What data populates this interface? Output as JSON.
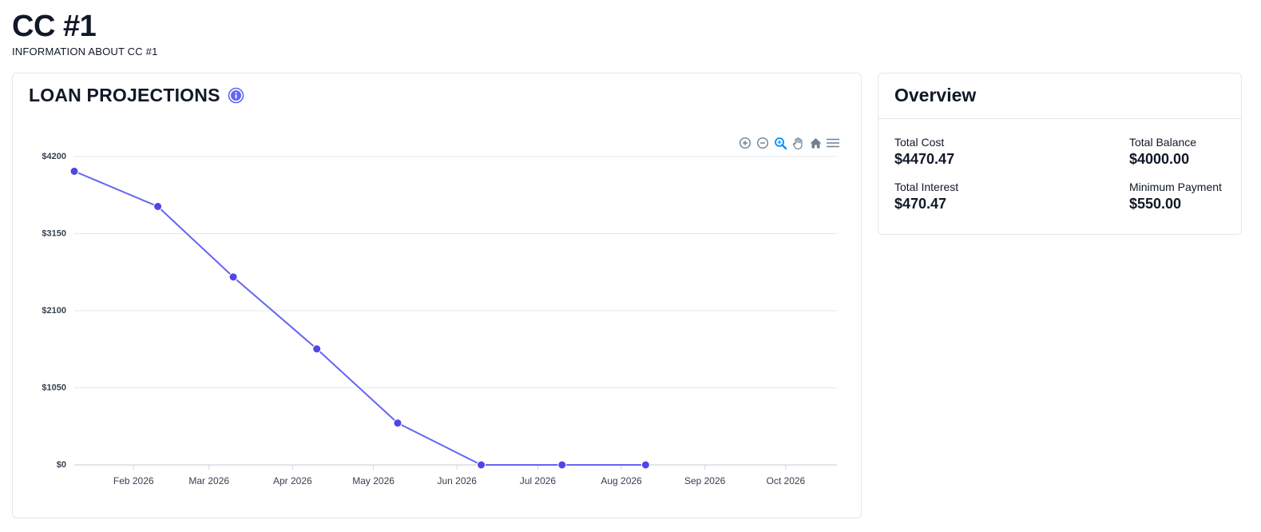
{
  "page": {
    "title": "CC #1",
    "subtitle": "INFORMATION ABOUT CC #1"
  },
  "chart_card": {
    "title": "LOAN PROJECTIONS",
    "info_icon": "info-icon",
    "toolbar": [
      "zoom-in-icon",
      "zoom-out-icon",
      "selection-zoom-icon",
      "pan-hand-icon",
      "home-reset-icon",
      "menu-icon"
    ]
  },
  "overview": {
    "title": "Overview",
    "stats": [
      {
        "label": "Total Cost",
        "value": "$4470.47"
      },
      {
        "label": "Total Balance",
        "value": "$4000.00"
      },
      {
        "label": "Total Interest",
        "value": "$470.47"
      },
      {
        "label": "Minimum Payment",
        "value": "$550.00"
      }
    ]
  },
  "colors": {
    "line": "#6366f1",
    "marker": "#4f46e5",
    "grid": "#e5e7eb",
    "axis_text": "#374151",
    "toolbar_icon": "#6e8192",
    "toolbar_active": "#008ffb",
    "info_icon": "#6366f1"
  },
  "chart_data": {
    "type": "line",
    "title": "",
    "xlabel": "",
    "ylabel": "",
    "ylim": [
      0,
      4200
    ],
    "y_ticks": [
      {
        "value": 0,
        "label": "$0"
      },
      {
        "value": 1050,
        "label": "$1050"
      },
      {
        "value": 2100,
        "label": "$2100"
      },
      {
        "value": 3150,
        "label": "$3150"
      },
      {
        "value": 4200,
        "label": "$4200"
      }
    ],
    "xlim": [
      "2026-01-10",
      "2026-10-20"
    ],
    "x_ticks": [
      {
        "date": "2026-02-01",
        "label": "Feb 2026"
      },
      {
        "date": "2026-03-01",
        "label": "Mar 2026"
      },
      {
        "date": "2026-04-01",
        "label": "Apr 2026"
      },
      {
        "date": "2026-05-01",
        "label": "May 2026"
      },
      {
        "date": "2026-06-01",
        "label": "Jun 2026"
      },
      {
        "date": "2026-07-01",
        "label": "Jul 2026"
      },
      {
        "date": "2026-08-01",
        "label": "Aug 2026"
      },
      {
        "date": "2026-09-01",
        "label": "Sep 2026"
      },
      {
        "date": "2026-10-01",
        "label": "Oct 2026"
      }
    ],
    "series": [
      {
        "points": [
          {
            "x": "2026-01-10",
            "y": 4000
          },
          {
            "x": "2026-02-10",
            "y": 3520
          },
          {
            "x": "2026-03-10",
            "y": 2560
          },
          {
            "x": "2026-04-10",
            "y": 1580
          },
          {
            "x": "2026-05-10",
            "y": 570
          },
          {
            "x": "2026-06-10",
            "y": 0
          },
          {
            "x": "2026-07-10",
            "y": 0
          },
          {
            "x": "2026-08-10",
            "y": 0
          }
        ]
      }
    ],
    "grid": true,
    "legend": "none"
  }
}
